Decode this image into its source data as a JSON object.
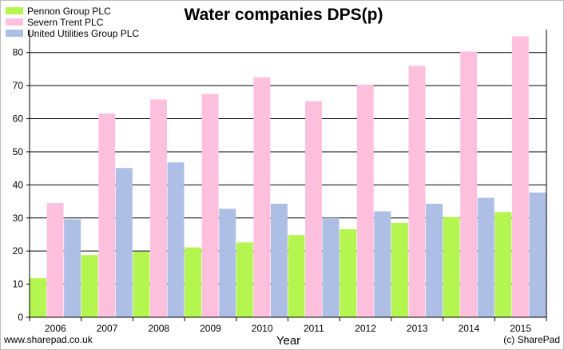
{
  "chart_data": {
    "type": "bar",
    "title": "Water companies DPS(p)",
    "xlabel": "Year",
    "ylabel": "",
    "ylim": [
      0,
      85
    ],
    "yticks": [
      0,
      10,
      20,
      30,
      40,
      50,
      60,
      70,
      80
    ],
    "grid": "horizontal",
    "legend_position": "top-left",
    "categories": [
      "2006",
      "2007",
      "2008",
      "2009",
      "2010",
      "2011",
      "2012",
      "2013",
      "2014",
      "2015"
    ],
    "series": [
      {
        "name": "Pennon Group PLC",
        "color": "#b4f550",
        "values": [
          11.8,
          18.8,
          19.8,
          21.1,
          22.6,
          24.8,
          26.6,
          28.5,
          30.3,
          31.8
        ]
      },
      {
        "name": "Severn Trent PLC",
        "color": "#ffc0de",
        "values": [
          34.5,
          61.6,
          65.8,
          67.5,
          72.5,
          65.3,
          70.3,
          76.0,
          80.3,
          84.9
        ]
      },
      {
        "name": "United Utilities Group PLC",
        "color": "#aebfe6",
        "values": [
          29.6,
          45.1,
          46.8,
          32.8,
          34.3,
          30.0,
          32.0,
          34.3,
          36.1,
          37.7
        ]
      }
    ]
  },
  "footer": {
    "left": "www.sharepad.co.uk",
    "right": "(c) SharePad"
  }
}
